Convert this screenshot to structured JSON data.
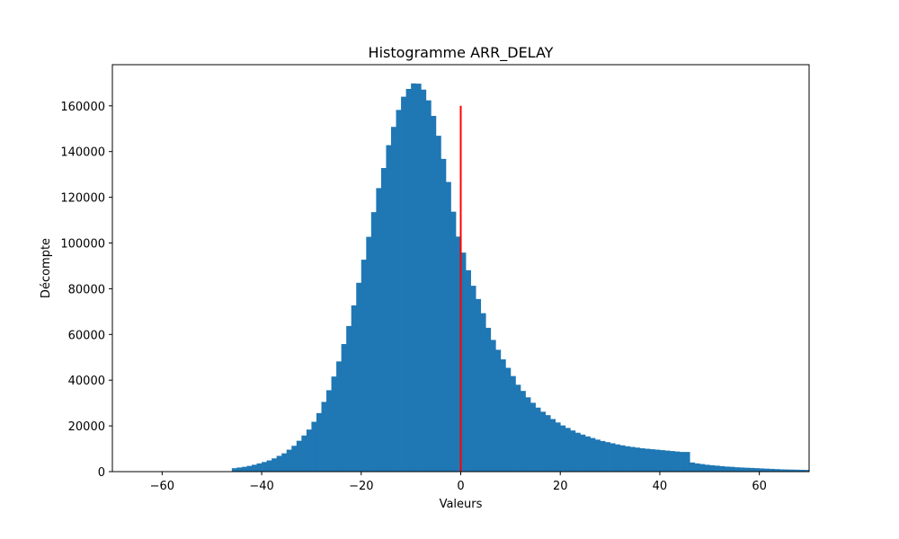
{
  "chart_data": {
    "type": "bar",
    "title": "Histogramme ARR_DELAY",
    "xlabel": "Valeurs",
    "ylabel": "Décompte",
    "xlim": [
      -70,
      70
    ],
    "ylim": [
      0,
      178000
    ],
    "xticks": [
      -60,
      -40,
      -20,
      0,
      20,
      40,
      60
    ],
    "yticks": [
      0,
      20000,
      40000,
      60000,
      80000,
      100000,
      120000,
      140000,
      160000
    ],
    "grid": false,
    "bar_color": "#1f77b4",
    "bin_width": 1,
    "bins": [
      {
        "x": -46,
        "y": 1500
      },
      {
        "x": -45,
        "y": 1800
      },
      {
        "x": -44,
        "y": 2100
      },
      {
        "x": -43,
        "y": 2500
      },
      {
        "x": -42,
        "y": 3000
      },
      {
        "x": -41,
        "y": 3600
      },
      {
        "x": -40,
        "y": 4200
      },
      {
        "x": -39,
        "y": 4900
      },
      {
        "x": -38,
        "y": 5800
      },
      {
        "x": -37,
        "y": 6900
      },
      {
        "x": -36,
        "y": 8000
      },
      {
        "x": -35,
        "y": 9600
      },
      {
        "x": -34,
        "y": 11300
      },
      {
        "x": -33,
        "y": 13500
      },
      {
        "x": -32,
        "y": 15800
      },
      {
        "x": -31,
        "y": 18400
      },
      {
        "x": -30,
        "y": 21800
      },
      {
        "x": -29,
        "y": 25600
      },
      {
        "x": -28,
        "y": 30500
      },
      {
        "x": -27,
        "y": 35600
      },
      {
        "x": -26,
        "y": 41600
      },
      {
        "x": -25,
        "y": 48200
      },
      {
        "x": -24,
        "y": 55800
      },
      {
        "x": -23,
        "y": 63700
      },
      {
        "x": -22,
        "y": 72700
      },
      {
        "x": -21,
        "y": 82600
      },
      {
        "x": -20,
        "y": 92700
      },
      {
        "x": -19,
        "y": 102700
      },
      {
        "x": -18,
        "y": 113500
      },
      {
        "x": -17,
        "y": 124000
      },
      {
        "x": -16,
        "y": 132800
      },
      {
        "x": -15,
        "y": 142800
      },
      {
        "x": -14,
        "y": 150800
      },
      {
        "x": -13,
        "y": 158200
      },
      {
        "x": -12,
        "y": 164000
      },
      {
        "x": -11,
        "y": 167400
      },
      {
        "x": -10,
        "y": 169800
      },
      {
        "x": -9,
        "y": 169700
      },
      {
        "x": -8,
        "y": 167100
      },
      {
        "x": -7,
        "y": 162400
      },
      {
        "x": -6,
        "y": 155600
      },
      {
        "x": -5,
        "y": 146900
      },
      {
        "x": -4,
        "y": 136800
      },
      {
        "x": -3,
        "y": 126700
      },
      {
        "x": -2,
        "y": 113700
      },
      {
        "x": -1,
        "y": 102800
      },
      {
        "x": 0,
        "y": 95800
      },
      {
        "x": 1,
        "y": 88100
      },
      {
        "x": 2,
        "y": 81300
      },
      {
        "x": 3,
        "y": 75500
      },
      {
        "x": 4,
        "y": 69300
      },
      {
        "x": 5,
        "y": 62900
      },
      {
        "x": 6,
        "y": 57600
      },
      {
        "x": 7,
        "y": 53300
      },
      {
        "x": 8,
        "y": 49100
      },
      {
        "x": 9,
        "y": 45400
      },
      {
        "x": 10,
        "y": 41800
      },
      {
        "x": 11,
        "y": 38000
      },
      {
        "x": 12,
        "y": 35300
      },
      {
        "x": 13,
        "y": 32500
      },
      {
        "x": 14,
        "y": 30100
      },
      {
        "x": 15,
        "y": 28000
      },
      {
        "x": 16,
        "y": 26200
      },
      {
        "x": 17,
        "y": 24700
      },
      {
        "x": 18,
        "y": 23000
      },
      {
        "x": 19,
        "y": 21500
      },
      {
        "x": 20,
        "y": 20200
      },
      {
        "x": 21,
        "y": 19100
      },
      {
        "x": 22,
        "y": 18000
      },
      {
        "x": 23,
        "y": 17000
      },
      {
        "x": 24,
        "y": 16200
      },
      {
        "x": 25,
        "y": 15400
      },
      {
        "x": 26,
        "y": 14700
      },
      {
        "x": 27,
        "y": 14000
      },
      {
        "x": 28,
        "y": 13400
      },
      {
        "x": 29,
        "y": 12900
      },
      {
        "x": 30,
        "y": 12400
      },
      {
        "x": 31,
        "y": 11900
      },
      {
        "x": 32,
        "y": 11500
      },
      {
        "x": 33,
        "y": 11100
      },
      {
        "x": 34,
        "y": 10800
      },
      {
        "x": 35,
        "y": 10500
      },
      {
        "x": 36,
        "y": 10200
      },
      {
        "x": 37,
        "y": 10000
      },
      {
        "x": 38,
        "y": 9800
      },
      {
        "x": 39,
        "y": 9600
      },
      {
        "x": 40,
        "y": 9400
      },
      {
        "x": 41,
        "y": 9200
      },
      {
        "x": 42,
        "y": 9000
      },
      {
        "x": 43,
        "y": 8800
      },
      {
        "x": 44,
        "y": 8600
      },
      {
        "x": 45,
        "y": 8600
      },
      {
        "x": 46,
        "y": 4000
      },
      {
        "x": 47,
        "y": 3600
      },
      {
        "x": 48,
        "y": 3300
      },
      {
        "x": 49,
        "y": 3000
      },
      {
        "x": 50,
        "y": 2800
      },
      {
        "x": 51,
        "y": 2600
      },
      {
        "x": 52,
        "y": 2400
      },
      {
        "x": 53,
        "y": 2200
      },
      {
        "x": 54,
        "y": 2100
      },
      {
        "x": 55,
        "y": 1900
      },
      {
        "x": 56,
        "y": 1800
      },
      {
        "x": 57,
        "y": 1700
      },
      {
        "x": 58,
        "y": 1600
      },
      {
        "x": 59,
        "y": 1500
      },
      {
        "x": 60,
        "y": 1400
      },
      {
        "x": 61,
        "y": 1300
      },
      {
        "x": 62,
        "y": 1200
      },
      {
        "x": 63,
        "y": 1100
      },
      {
        "x": 64,
        "y": 1000
      },
      {
        "x": 65,
        "y": 950
      },
      {
        "x": 66,
        "y": 900
      },
      {
        "x": 67,
        "y": 850
      },
      {
        "x": 68,
        "y": 800
      },
      {
        "x": 69,
        "y": 750
      }
    ],
    "vline": {
      "x": 0,
      "y_from": 0,
      "y_to": 160000,
      "color": "#ff0000"
    }
  }
}
